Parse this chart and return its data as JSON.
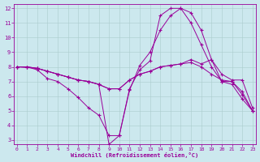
{
  "xlabel": "Windchill (Refroidissement éolien,°C)",
  "bg_color": "#cce8ee",
  "line_color": "#990099",
  "grid_color": "#aacccc",
  "xlim": [
    0,
    23
  ],
  "ylim": [
    3,
    12
  ],
  "xticks": [
    0,
    1,
    2,
    3,
    4,
    5,
    6,
    7,
    8,
    9,
    10,
    11,
    12,
    13,
    14,
    15,
    16,
    17,
    18,
    19,
    20,
    21,
    22,
    23
  ],
  "yticks": [
    3,
    4,
    5,
    6,
    7,
    8,
    9,
    10,
    11,
    12
  ],
  "series": [
    {
      "x": [
        0,
        1,
        2,
        3,
        4,
        5,
        6,
        7,
        8,
        9,
        10,
        11,
        12,
        13,
        14,
        15,
        16,
        17,
        18,
        19,
        20,
        21,
        22,
        23
      ],
      "y": [
        8.0,
        8.0,
        7.8,
        7.2,
        7.0,
        6.5,
        5.9,
        5.2,
        4.7,
        3.3,
        3.3,
        6.4,
        8.1,
        9.0,
        10.5,
        11.5,
        12.0,
        11.7,
        10.5,
        8.5,
        7.0,
        7.0,
        6.3,
        5.0
      ]
    },
    {
      "x": [
        0,
        1,
        2,
        3,
        4,
        5,
        6,
        7,
        8,
        9,
        10,
        11,
        12,
        13,
        14,
        15,
        16,
        17,
        18,
        19,
        20,
        21,
        22,
        23
      ],
      "y": [
        8.0,
        8.0,
        7.9,
        7.7,
        7.5,
        7.3,
        7.1,
        7.0,
        6.8,
        6.5,
        6.5,
        7.1,
        7.5,
        7.7,
        8.0,
        8.1,
        8.2,
        8.5,
        8.2,
        8.5,
        7.5,
        7.1,
        7.1,
        5.2
      ]
    },
    {
      "x": [
        0,
        1,
        2,
        3,
        4,
        5,
        6,
        7,
        8,
        9,
        10,
        11,
        12,
        13,
        14,
        15,
        16,
        17,
        18,
        19,
        20,
        21,
        22,
        23
      ],
      "y": [
        8.0,
        8.0,
        7.9,
        7.7,
        7.5,
        7.3,
        7.1,
        7.0,
        6.8,
        6.5,
        6.5,
        7.1,
        7.5,
        7.7,
        8.0,
        8.1,
        8.2,
        8.3,
        8.0,
        7.5,
        7.1,
        7.0,
        6.1,
        5.0
      ]
    },
    {
      "x": [
        0,
        2,
        3,
        4,
        5,
        6,
        7,
        8,
        9,
        10,
        11,
        12,
        13,
        14,
        15,
        16,
        17,
        18,
        19,
        20,
        21,
        22,
        23
      ],
      "y": [
        8.0,
        7.9,
        7.7,
        7.5,
        7.3,
        7.1,
        7.0,
        6.8,
        2.7,
        3.3,
        6.5,
        7.8,
        8.4,
        11.5,
        12.0,
        12.0,
        11.0,
        9.5,
        8.0,
        7.0,
        6.8,
        5.8,
        5.0
      ]
    }
  ]
}
